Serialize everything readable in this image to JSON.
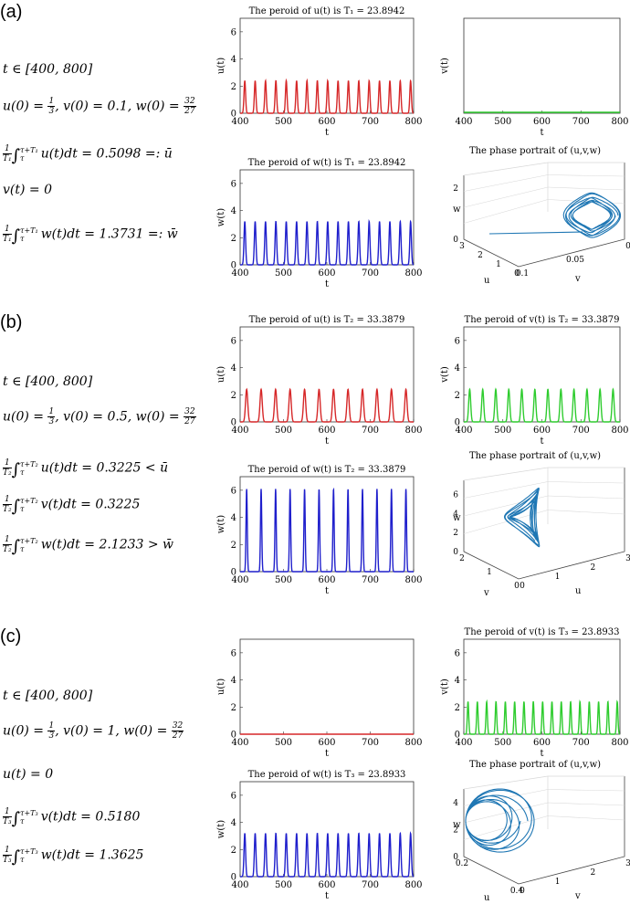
{
  "panels": [
    {
      "label": "(a)",
      "equations": [
        {
          "type": "plain",
          "text": "t ∈ [400, 800]"
        },
        {
          "type": "ic",
          "pre": "u(0) = ",
          "num": "1",
          "den": "3",
          "mid": ", v(0) = 0.1, w(0) = ",
          "num2": "32",
          "den2": "27"
        },
        {
          "type": "avg",
          "fnum": "1",
          "fden": "T₁",
          "upper": "τ+T₁",
          "lower": "τ",
          "body": "u(t)dt = 0.5098 =: ū"
        },
        {
          "type": "plain",
          "text": "v(t) = 0"
        },
        {
          "type": "avg",
          "fnum": "1",
          "fden": "T₁",
          "upper": "τ+T₁",
          "lower": "τ",
          "body": "w(t)dt = 1.3731 =: w̄"
        }
      ],
      "plots": [
        {
          "title": "The peroid of u(t) is T₁ = 23.8942",
          "ylabel": "u(t)",
          "xlabel": "t",
          "xticks": [
            "400",
            "500",
            "600",
            "700",
            "800"
          ],
          "yticks": [
            "0",
            "2",
            "4",
            "6"
          ],
          "ylim": [
            0,
            7
          ],
          "color": "#d62728",
          "wave": {
            "period": 23.8942,
            "peak": 2.4
          }
        },
        {
          "title": "",
          "ylabel": "v(t)",
          "xlabel": "t",
          "xticks": [
            "400",
            "500",
            "600",
            "700",
            "800"
          ],
          "yticks": [],
          "ylim": [
            0,
            1
          ],
          "color": "#2ecc2e",
          "wave": {
            "period": 0,
            "peak": 0
          }
        },
        {
          "title": "The peroid of w(t) is T₁ = 23.8942",
          "ylabel": "w(t)",
          "xlabel": "t",
          "xticks": [
            "400",
            "500",
            "600",
            "700",
            "800"
          ],
          "yticks": [
            "0",
            "2",
            "4",
            "6"
          ],
          "ylim": [
            0,
            7
          ],
          "color": "#1f1fcc",
          "wave": {
            "period": 23.8942,
            "peak": 3.2
          }
        },
        {
          "title": "The phase portrait of (u,v,w)",
          "labels": [
            "w",
            "u",
            "v"
          ],
          "ticks_w": [
            "0",
            "2"
          ],
          "ticks_a": [
            "3",
            "2",
            "1",
            "0"
          ],
          "ticks_b": [
            "0.1",
            "0.05",
            "0"
          ]
        }
      ]
    },
    {
      "label": "(b)",
      "equations": [
        {
          "type": "plain",
          "text": "t ∈ [400, 800]"
        },
        {
          "type": "ic",
          "pre": "u(0) = ",
          "num": "1",
          "den": "3",
          "mid": ", v(0) = 0.5, w(0) = ",
          "num2": "32",
          "den2": "27"
        },
        {
          "type": "avg",
          "fnum": "1",
          "fden": "T₂",
          "upper": "τ+T₂",
          "lower": "τ",
          "body": "u(t)dt = 0.3225 < ū"
        },
        {
          "type": "avg",
          "fnum": "1",
          "fden": "T₂",
          "upper": "τ+T₂",
          "lower": "τ",
          "body": "v(t)dt = 0.3225"
        },
        {
          "type": "avg",
          "fnum": "1",
          "fden": "T₂",
          "upper": "τ+T₂",
          "lower": "τ",
          "body": "w(t)dt = 2.1233 > w̄"
        }
      ],
      "plots": [
        {
          "title": "The peroid of u(t) is T₂ = 33.3879",
          "ylabel": "u(t)",
          "xlabel": "t",
          "xticks": [
            "400",
            "500",
            "600",
            "700",
            "800"
          ],
          "yticks": [
            "0",
            "2",
            "4",
            "6"
          ],
          "ylim": [
            0,
            7
          ],
          "color": "#d62728",
          "wave": {
            "period": 33.3879,
            "peak": 2.4
          }
        },
        {
          "title": "The peroid of v(t) is T₂ = 33.3879",
          "ylabel": "v(t)",
          "xlabel": "t",
          "xticks": [
            "400",
            "500",
            "600",
            "700",
            "800"
          ],
          "yticks": [
            "0",
            "2",
            "4",
            "6"
          ],
          "ylim": [
            0,
            7
          ],
          "color": "#2ecc2e",
          "wave": {
            "period": 33.3879,
            "peak": 2.4
          }
        },
        {
          "title": "The peroid of w(t) is T₂ = 33.3879",
          "ylabel": "w(t)",
          "xlabel": "t",
          "xticks": [
            "400",
            "500",
            "600",
            "700",
            "800"
          ],
          "yticks": [
            "0",
            "2",
            "4",
            "6"
          ],
          "ylim": [
            0,
            7
          ],
          "color": "#1f1fcc",
          "wave": {
            "period": 33.3879,
            "peak": 6.1
          }
        },
        {
          "title": "The phase portrait of (u,v,w)",
          "labels": [
            "w",
            "v",
            "u"
          ],
          "ticks_w": [
            "0",
            "2",
            "4",
            "6"
          ],
          "ticks_a": [
            "2",
            "1",
            "0"
          ],
          "ticks_b": [
            "0",
            "1",
            "2",
            "3"
          ]
        }
      ]
    },
    {
      "label": "(c)",
      "equations": [
        {
          "type": "plain",
          "text": "t ∈ [400, 800]"
        },
        {
          "type": "ic",
          "pre": "u(0) = ",
          "num": "1",
          "den": "3",
          "mid": ", v(0) = 1, w(0) = ",
          "num2": "32",
          "den2": "27"
        },
        {
          "type": "plain",
          "text": "u(t) = 0"
        },
        {
          "type": "avg",
          "fnum": "1",
          "fden": "T₃",
          "upper": "τ+T₃",
          "lower": "τ",
          "body": "v(t)dt = 0.5180"
        },
        {
          "type": "avg",
          "fnum": "1",
          "fden": "T₃",
          "upper": "τ+T₃",
          "lower": "τ",
          "body": "w(t)dt = 1.3625"
        }
      ],
      "plots": [
        {
          "title": "",
          "ylabel": "u(t)",
          "xlabel": "t",
          "xticks": [
            "400",
            "500",
            "600",
            "700",
            "800"
          ],
          "yticks": [
            "0",
            "2",
            "4",
            "6"
          ],
          "ylim": [
            0,
            7
          ],
          "color": "#d62728",
          "wave": {
            "period": 0,
            "peak": 0
          }
        },
        {
          "title": "The peroid of v(t) is T₃ = 23.8933",
          "ylabel": "v(t)",
          "xlabel": "t",
          "xticks": [
            "400",
            "500",
            "600",
            "700",
            "800"
          ],
          "yticks": [
            "0",
            "2",
            "4",
            "6"
          ],
          "ylim": [
            0,
            7
          ],
          "color": "#2ecc2e",
          "wave": {
            "period": 23.8933,
            "peak": 2.4
          }
        },
        {
          "title": "The peroid of w(t) is T₃ = 23.8933",
          "ylabel": "w(t)",
          "xlabel": "t",
          "xticks": [
            "400",
            "500",
            "600",
            "700",
            "800"
          ],
          "yticks": [
            "0",
            "2",
            "4",
            "6"
          ],
          "ylim": [
            0,
            7
          ],
          "color": "#1f1fcc",
          "wave": {
            "period": 23.8933,
            "peak": 3.2
          }
        },
        {
          "title": "The phase portrait of (u,v,w)",
          "labels": [
            "w",
            "u",
            "v"
          ],
          "ticks_w": [
            "0",
            "2",
            "4"
          ],
          "ticks_a": [
            "0.2",
            "0.4"
          ],
          "ticks_b": [
            "0",
            "1",
            "2",
            "3"
          ]
        }
      ]
    }
  ]
}
